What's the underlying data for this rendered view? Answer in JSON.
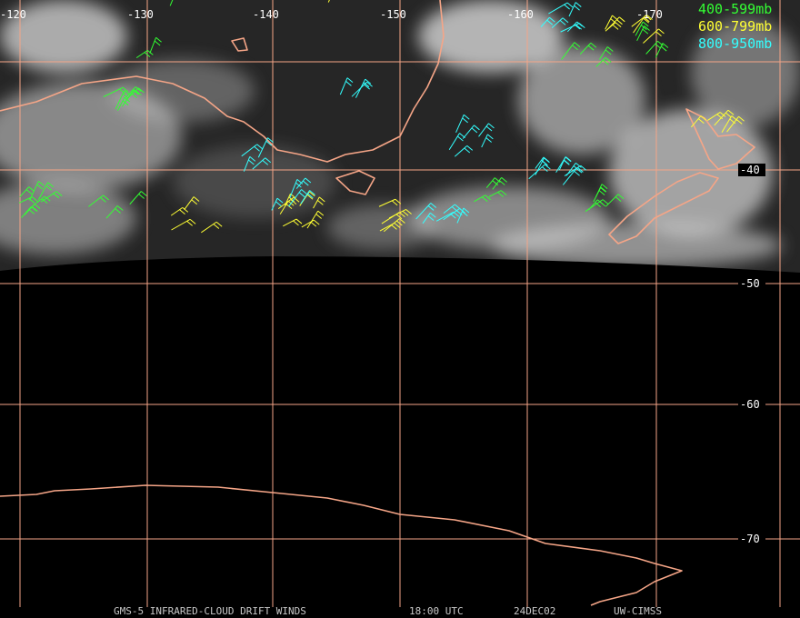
{
  "grid": {
    "lon_labels": [
      "-120",
      "-130",
      "-140",
      "-150",
      "-160",
      "-170"
    ],
    "lat_labels": [
      "-40",
      "-50",
      "-60",
      "-70"
    ]
  },
  "legend": [
    {
      "label": "400-599mb",
      "color": "#33ff33"
    },
    {
      "label": "600-799mb",
      "color": "#ffff33"
    },
    {
      "label": "800-950mb",
      "color": "#33ffff"
    }
  ],
  "footer": {
    "product": "GMS-5 INFRARED-CLOUD DRIFT WINDS",
    "time": "18:00 UTC",
    "date": "24DEC02",
    "source": "UW-CIMSS"
  }
}
